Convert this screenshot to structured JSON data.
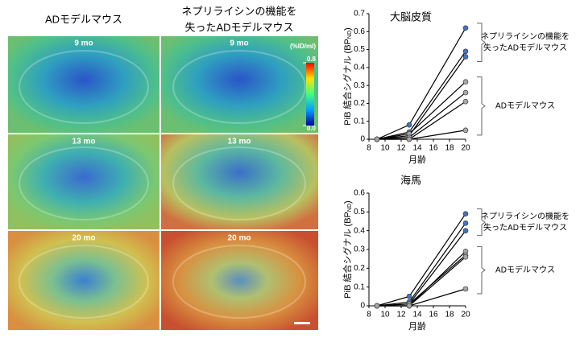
{
  "figure": {
    "column_headers": [
      [
        "ADモデルマウス"
      ],
      [
        "ネプリライシンの機能を",
        "失ったADモデルマウス"
      ]
    ],
    "row_labels": [
      "9 mo",
      "13 mo",
      "20 mo"
    ],
    "colorbar": {
      "unit": "(%ID/ml)",
      "ticks": [
        {
          "value": 0,
          "label": "0.0"
        },
        0.8
      ]
    }
  },
  "chart_data": [
    {
      "type": "line",
      "title": "大脳皮質",
      "xlabel": "月齢",
      "ylabel": [
        "PiB 結合シグナル (BP",
        "ND",
        ")"
      ],
      "x": [
        9,
        13,
        20
      ],
      "xlim": [
        8,
        20
      ],
      "xticks": [
        8,
        10,
        12,
        14,
        16,
        18,
        20
      ],
      "ylim": [
        0,
        0.7
      ],
      "yticks": [
        0,
        0.1,
        0.2,
        0.3,
        0.4,
        0.5,
        0.6,
        0.7
      ],
      "groups": [
        {
          "label": [
            "ネプリライシンの機能を",
            "失ったADモデルマウス"
          ],
          "color": "#4472c4",
          "lines": [
            [
              0,
              0.08,
              0.62
            ],
            [
              0,
              0.04,
              0.49
            ],
            [
              0,
              0.02,
              0.46
            ]
          ]
        },
        {
          "label": [
            "ADモデルマウス"
          ],
          "color": "#a6a6a6",
          "lines": [
            [
              0,
              0.03,
              0.32
            ],
            [
              0,
              0.01,
              0.26
            ],
            [
              0,
              0,
              0.21
            ],
            [
              0,
              0,
              0.05
            ]
          ]
        }
      ]
    },
    {
      "type": "line",
      "title": "海馬",
      "xlabel": "月齢",
      "ylabel": [
        "PiB 結合シグナル (BP",
        "ND",
        ")"
      ],
      "x": [
        9,
        13,
        20
      ],
      "xlim": [
        8,
        20
      ],
      "xticks": [
        8,
        10,
        12,
        14,
        16,
        18,
        20
      ],
      "ylim": [
        0,
        0.6
      ],
      "yticks": [
        0,
        0.1,
        0.2,
        0.3,
        0.4,
        0.5,
        0.6
      ],
      "groups": [
        {
          "label": [
            "ネプリライシンの機能を",
            "失ったADモデルマウス"
          ],
          "color": "#4472c4",
          "lines": [
            [
              0,
              0.05,
              0.49
            ],
            [
              0,
              0.02,
              0.44
            ],
            [
              0,
              0.01,
              0.4
            ]
          ]
        },
        {
          "label": [
            "ADモデルマウス"
          ],
          "color": "#a6a6a6",
          "lines": [
            [
              0,
              0,
              0.29
            ],
            [
              0,
              0.01,
              0.27
            ],
            [
              0,
              0,
              0.26
            ],
            [
              0,
              0,
              0.09
            ]
          ]
        }
      ]
    }
  ]
}
